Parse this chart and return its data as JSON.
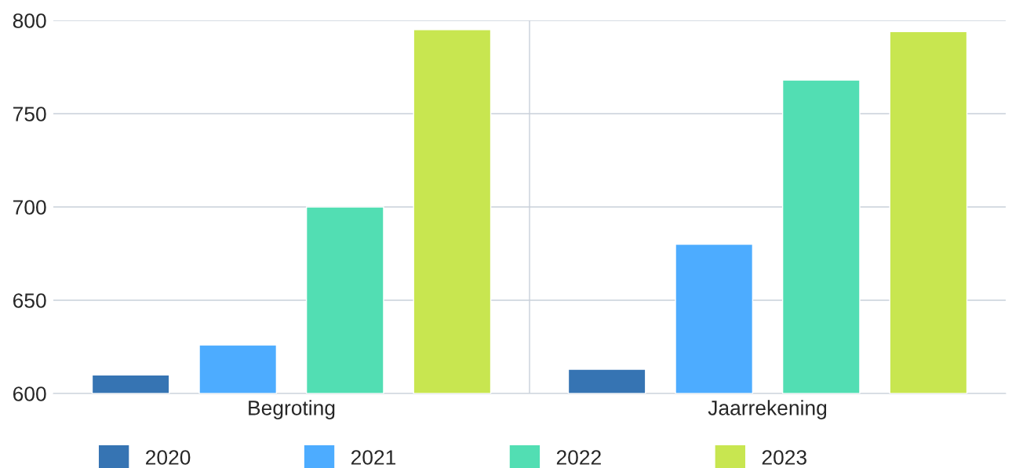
{
  "chart_data": {
    "type": "bar",
    "categories": [
      "Begroting",
      "Jaarrekening"
    ],
    "series": [
      {
        "name": "2020",
        "color": "#3674b3",
        "values": [
          610,
          613
        ]
      },
      {
        "name": "2021",
        "color": "#4dacff",
        "values": [
          626,
          680
        ]
      },
      {
        "name": "2022",
        "color": "#52deb3",
        "values": [
          700,
          768
        ]
      },
      {
        "name": "2023",
        "color": "#c8e650",
        "values": [
          795,
          794
        ]
      }
    ],
    "ylim": [
      600,
      800
    ],
    "yticks": [
      600,
      650,
      700,
      750,
      800
    ],
    "grid": true,
    "legend": "bottom"
  }
}
